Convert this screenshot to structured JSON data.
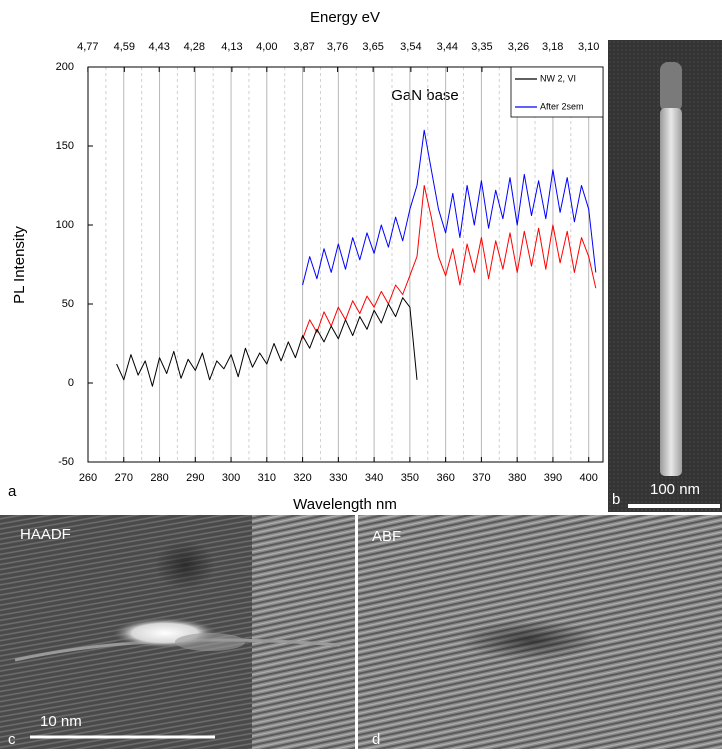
{
  "chart_data": {
    "type": "line",
    "title": "Energy eV",
    "x_label": "Wavelength nm",
    "y_label": "PL Intensity",
    "annotation": "GaN base",
    "xlim": [
      260,
      404
    ],
    "ylim": [
      -50,
      200
    ],
    "xticks": [
      260,
      270,
      280,
      290,
      300,
      310,
      320,
      330,
      340,
      350,
      360,
      370,
      380,
      390,
      400
    ],
    "yticks": [
      -50,
      0,
      50,
      100,
      150,
      200
    ],
    "x2ticks": [
      {
        "value": 4.77,
        "label": "4,77"
      },
      {
        "value": 4.59,
        "label": "4,59"
      },
      {
        "value": 4.43,
        "label": "4,43"
      },
      {
        "value": 4.28,
        "label": "4,28"
      },
      {
        "value": 4.13,
        "label": "4,13"
      },
      {
        "value": 4.0,
        "label": "4,00"
      },
      {
        "value": 3.87,
        "label": "3,87"
      },
      {
        "value": 3.76,
        "label": "3,76"
      },
      {
        "value": 3.65,
        "label": "3,65"
      },
      {
        "value": 3.54,
        "label": "3,54"
      },
      {
        "value": 3.44,
        "label": "3,44"
      },
      {
        "value": 3.35,
        "label": "3,35"
      },
      {
        "value": 3.26,
        "label": "3,26"
      },
      {
        "value": 3.18,
        "label": "3,18"
      },
      {
        "value": 3.1,
        "label": "3,10"
      }
    ],
    "grid": true,
    "legend": "upper right",
    "x": [
      268,
      270,
      272,
      274,
      276,
      278,
      280,
      282,
      284,
      286,
      288,
      290,
      292,
      294,
      296,
      298,
      300,
      302,
      304,
      306,
      308,
      310,
      312,
      314,
      316,
      318,
      320,
      322,
      324,
      326,
      328,
      330,
      332,
      334,
      336,
      338,
      340,
      342,
      344,
      346,
      348,
      350,
      352,
      354,
      356,
      358,
      360,
      362,
      364,
      366,
      368,
      370,
      372,
      374,
      376,
      378,
      380,
      382,
      384,
      386,
      388,
      390,
      392,
      394,
      396,
      398,
      400,
      402
    ],
    "series": [
      {
        "name": "After 2sem",
        "color": "#0000ff",
        "values": [
          null,
          null,
          null,
          null,
          null,
          null,
          null,
          null,
          null,
          null,
          null,
          null,
          null,
          null,
          null,
          null,
          null,
          null,
          null,
          null,
          null,
          null,
          null,
          null,
          null,
          null,
          62,
          80,
          66,
          85,
          70,
          88,
          72,
          92,
          78,
          95,
          82,
          100,
          86,
          105,
          90,
          110,
          125,
          160,
          135,
          110,
          95,
          120,
          92,
          125,
          100,
          128,
          98,
          122,
          104,
          130,
          100,
          132,
          106,
          128,
          104,
          135,
          108,
          130,
          102,
          125,
          110,
          70
        ]
      },
      {
        "color": "#ff0000",
        "values": [
          null,
          null,
          null,
          null,
          null,
          null,
          null,
          null,
          null,
          null,
          null,
          null,
          null,
          null,
          null,
          null,
          null,
          null,
          null,
          null,
          null,
          null,
          null,
          null,
          null,
          null,
          28,
          40,
          32,
          45,
          36,
          48,
          40,
          52,
          44,
          55,
          48,
          58,
          50,
          62,
          56,
          68,
          80,
          125,
          105,
          80,
          68,
          85,
          62,
          88,
          70,
          92,
          66,
          90,
          72,
          95,
          70,
          96,
          74,
          98,
          72,
          100,
          76,
          96,
          70,
          92,
          80,
          60
        ]
      },
      {
        "name": "NW 2, VI",
        "color": "#000000",
        "values": [
          12,
          2,
          18,
          5,
          14,
          -2,
          16,
          6,
          20,
          3,
          15,
          8,
          19,
          2,
          14,
          9,
          18,
          4,
          22,
          10,
          19,
          12,
          25,
          14,
          26,
          16,
          30,
          22,
          34,
          26,
          36,
          28,
          40,
          30,
          42,
          34,
          46,
          38,
          50,
          42,
          54,
          48,
          2,
          null,
          null,
          null,
          null,
          null,
          null,
          null,
          null,
          null,
          null,
          null,
          null,
          null,
          null,
          null,
          null,
          null,
          null,
          null,
          null,
          null,
          null,
          null,
          null,
          null
        ]
      }
    ]
  },
  "panels": [
    {
      "label": "a"
    },
    {
      "label": "b",
      "scale_bar": "100 nm"
    },
    {
      "label": "c",
      "title": "HAADF",
      "scale_bar": "10 nm"
    },
    {
      "label": "d",
      "title": "ABF"
    }
  ]
}
